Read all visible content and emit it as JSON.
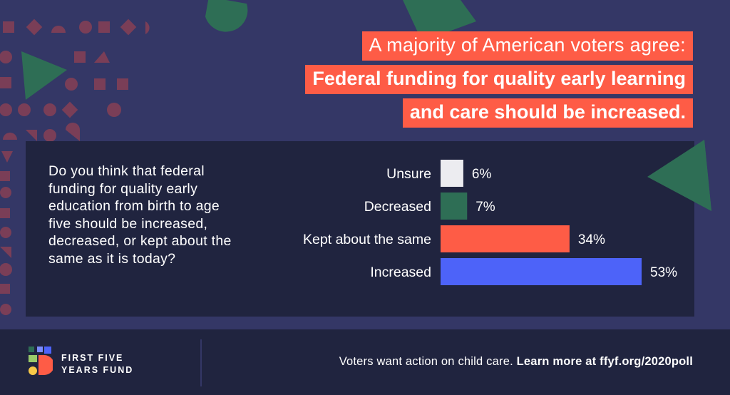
{
  "headline": {
    "line1": "A majority of American voters agree:",
    "line2": "Federal funding for quality early learning",
    "line3": "and care should be increased."
  },
  "question": "Do you think that federal funding for quality early education from birth to age five should be increased, decreased, or kept about the same as it is today?",
  "chart_data": {
    "type": "bar",
    "orientation": "horizontal",
    "categories": [
      "Unsure",
      "Decreased",
      "Kept about the same",
      "Increased"
    ],
    "values": [
      6,
      7,
      34,
      53
    ],
    "value_labels": [
      "6%",
      "7%",
      "34%",
      "53%"
    ],
    "colors": [
      "#ececf0",
      "#2e6e55",
      "#fe5c46",
      "#4d63f9"
    ],
    "title": "",
    "xlabel": "",
    "ylabel": "",
    "xlim": [
      0,
      53
    ],
    "grid": false,
    "legend": "none"
  },
  "footer": {
    "brand_line1": "FIRST FIVE",
    "brand_line2": "YEARS FUND",
    "tagline_plain": "Voters want action on child care.",
    "tagline_bold": "Learn more at ffyf.org/2020poll"
  },
  "colors": {
    "background": "#343766",
    "panel": "#20243f",
    "accent": "#fe5c46",
    "green": "#2e6e55",
    "blue": "#4d63f9",
    "muted_shape": "#7a3e57"
  }
}
